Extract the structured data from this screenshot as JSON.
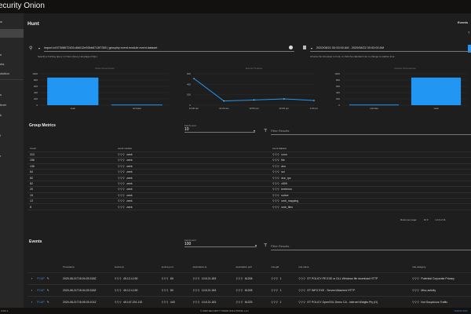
{
  "app": {
    "logo_text": "ecurity Onion"
  },
  "sidebar": {
    "items": [
      {
        "label": "w"
      },
      {
        "label": ""
      },
      {
        "label": "s"
      },
      {
        "label": "nts"
      },
      {
        "label": "olution"
      },
      {
        "label": "s"
      },
      {
        "label": "hnet"
      },
      {
        "label": "k"
      },
      {
        "label": "l"
      },
      {
        "label": "r"
      }
    ]
  },
  "page": {
    "title": "Hunt",
    "events_label": "Events",
    "right_sub": "T"
  },
  "query": {
    "value": "import.id:57308672401c6b012e93bb8713f7350 | groupby event.module event.dataset",
    "hint": "Specify a hunting query in Onion Query Language (OQL)",
    "search_icon": "magnify",
    "clear_icon": "close-circle"
  },
  "daterange": {
    "value": "2020/08/21 00:00:00 AM - 2020/08/22 00:00:00 AM",
    "hint": "Choose the timespan to hunt, or click the calendar icon to change to relative time."
  },
  "chart_data": [
    {
      "type": "bar",
      "title": "Most Occurrences",
      "categories": [
        "zeek",
        "suricata"
      ],
      "values": [
        880,
        20
      ],
      "ylim": [
        0,
        1000
      ],
      "yticks": [
        0,
        200,
        400,
        600,
        800,
        1000
      ],
      "color": "#2196f3"
    },
    {
      "type": "line",
      "title": "Events Timeline",
      "categories": [
        "11:00 am",
        "11:30 am",
        "12:00 pm",
        "12:30 pm",
        "1:00 pm"
      ],
      "values": [
        510,
        80,
        100,
        120,
        90
      ],
      "ylim": [
        0,
        600
      ],
      "yticks": [
        0,
        200,
        400,
        600
      ],
      "color": "#2196f3"
    },
    {
      "type": "bar",
      "title": "Fewest Occurrences",
      "categories": [
        "suricata",
        "zeek"
      ],
      "values": [
        20,
        880
      ],
      "ylim": [
        0,
        1000
      ],
      "yticks": [
        0,
        200,
        400,
        600,
        800,
        1000
      ],
      "color": "#2196f3"
    }
  ],
  "group_metrics": {
    "title": "Group Metrics",
    "fetch_limit_label": "Fetch Limit",
    "fetch_limit": "10",
    "filter_placeholder": "Filter Results",
    "columns": [
      "Count",
      "event.module",
      "event.dataset"
    ],
    "rows": [
      [
        "313",
        "zeek",
        "conn"
      ],
      [
        "156",
        "zeek",
        "file"
      ],
      [
        "135",
        "zeek",
        "dns"
      ],
      [
        "84",
        "zeek",
        "ssl"
      ],
      [
        "82",
        "zeek",
        "dce_rpc"
      ],
      [
        "82",
        "zeek",
        "x509"
      ],
      [
        "20",
        "zeek",
        "kerberos"
      ],
      [
        "15",
        "zeek",
        "notice"
      ],
      [
        "13",
        "zeek",
        "smb_mapping"
      ],
      [
        "8",
        "zeek",
        "smb_files"
      ]
    ],
    "rows_per_page_label": "Rows per page:",
    "rows_per_page": "10",
    "pagination": "1-10 of 11"
  },
  "events": {
    "title": "Events",
    "fetch_limit_label": "Fetch Limit",
    "fetch_limit": "100",
    "filter_placeholder": "Filter Results",
    "columns": [
      "",
      "Timestamp",
      "source.ip",
      "source.port",
      "destination.ip",
      "destination.port",
      "rule.gid",
      "rule.name",
      "rule.category"
    ],
    "pcap_label": "PCAP",
    "rows": [
      [
        "2020-08-21T15:04:25.318Z",
        "45.12.4.190",
        "80",
        "10.8.21.183",
        "61208",
        "1",
        "ET POLICY PE EXE or DLL Windows file download HTTP",
        "Potential Corporate Privacy"
      ],
      [
        "2020-08-21T15:04:25.318Z",
        "45.12.4.190",
        "80",
        "10.8.21.183",
        "61208",
        "1",
        "ET INFO EXE - Served Attached HTTP",
        "Misc activity"
      ],
      [
        "2020-08-21T15:05:25.101Z",
        "45.147.231.132",
        "443",
        "10.8.21.183",
        "61225",
        "1",
        "ET POLICY OpenSSL Demo CA - Internet Widgits Pty (O)",
        "Not Suspicious Traffic"
      ]
    ]
  },
  "footer": {
    "version": "3-RC.1",
    "copyright": "© 2020 SECURITY ONION SOLUTIONS, LLC",
    "terms": "TERMS AND"
  }
}
